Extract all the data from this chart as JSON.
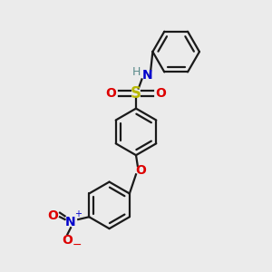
{
  "bg_color": "#ebebeb",
  "bond_color": "#1a1a1a",
  "S_color": "#b8b800",
  "N_color": "#0000cc",
  "O_color": "#dd0000",
  "H_color": "#5a8a8a",
  "figsize": [
    3.0,
    3.0
  ],
  "dpi": 100,
  "xlim": [
    -1.5,
    1.5
  ],
  "ylim": [
    -1.6,
    1.6
  ]
}
